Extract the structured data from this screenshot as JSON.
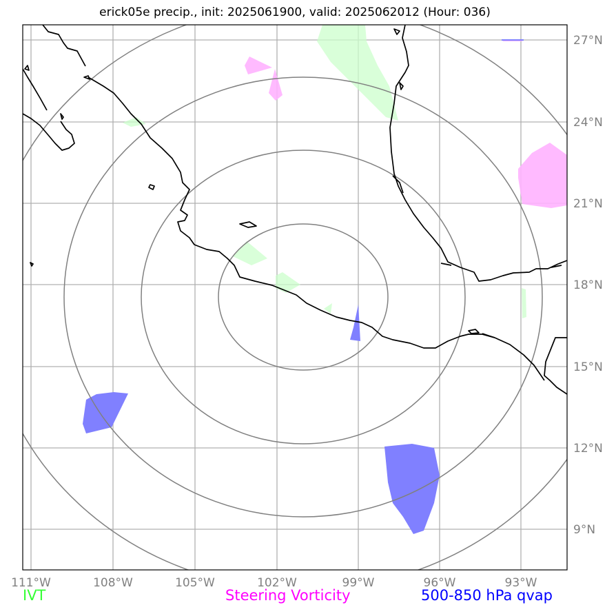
{
  "title": "erick05e precip., init: 2025061900, valid: 2025062012 (Hour: 036)",
  "x_ticks": [
    "111°W",
    "108°W",
    "105°W",
    "102°W",
    "99°W",
    "96°W",
    "93°W"
  ],
  "y_ticks": [
    "27°N",
    "24°N",
    "21°N",
    "18°N",
    "15°N",
    "12°N",
    "9°N"
  ],
  "legend": [
    {
      "label": "IVT",
      "color": "#33ff33"
    },
    {
      "label": "Steering Vorticity",
      "color": "#ff00ff"
    },
    {
      "label": "500-850 hPa qvap",
      "color": "#0000ff"
    }
  ],
  "colors": {
    "ivt_fill": "#ccffcc",
    "vorticity_fill": "#ffb3ff",
    "qvap_fill": "#8080ff",
    "range_rings": "#808080",
    "gridlines": "#b0b0b0",
    "coastline": "#000000"
  },
  "range_rings_center": {
    "lon": -101,
    "lat": 17.5
  },
  "range_rings_count": 4
}
